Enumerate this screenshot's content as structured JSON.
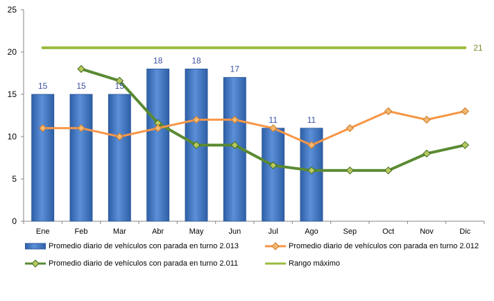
{
  "chart_data": {
    "type": "bar",
    "categories": [
      "Ene",
      "Feb",
      "Mar",
      "Abr",
      "May",
      "Jun",
      "Jul",
      "Ago",
      "Sep",
      "Oct",
      "Nov",
      "Dic"
    ],
    "ylim": [
      0,
      25
    ],
    "yticks": [
      0,
      5,
      10,
      15,
      20,
      25
    ],
    "ytick_labels": [
      "0",
      "5",
      "10",
      "15",
      "20",
      "25"
    ],
    "grid": false,
    "legend_position": "bottom",
    "series": [
      {
        "name": "Promedio diario de vehículos con parada en turno 2.013",
        "kind": "bar",
        "color": "#3d74c4",
        "values": [
          15,
          15,
          15,
          18,
          18,
          17,
          11,
          11,
          null,
          null,
          null,
          null
        ],
        "data_labels": [
          "15",
          "15",
          "15",
          "18",
          "18",
          "17",
          "11",
          "11"
        ]
      },
      {
        "name": "Promedio diario de vehículos con parada en turno 2.012",
        "kind": "line",
        "color": "#f79646",
        "values": [
          11,
          11,
          10,
          11,
          12,
          12,
          11,
          9,
          11,
          13,
          12,
          13
        ]
      },
      {
        "name": "Promedio diario de vehículos con parada en turno 2.011",
        "kind": "line",
        "color": "#5a8a32",
        "values": [
          null,
          18,
          16.6,
          11.6,
          9,
          9,
          6.6,
          6,
          6,
          6,
          8,
          9
        ]
      },
      {
        "name": "Rango máximo",
        "kind": "line",
        "color": "#9bbb3c",
        "values": [
          20.5,
          20.5,
          20.5,
          20.5,
          20.5,
          20.5,
          20.5,
          20.5,
          20.5,
          20.5,
          20.5,
          20.5
        ],
        "end_label": "21"
      }
    ]
  }
}
